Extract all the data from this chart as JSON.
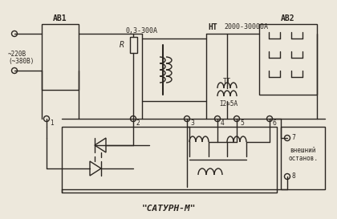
{
  "bg_color": "#ede8dc",
  "line_color": "#2a2520",
  "title": "\"САТУРН-М\"",
  "label_AB1": "АВ1",
  "label_AB2": "АВ2",
  "label_voltage1": "~220В",
  "label_voltage2": "(~380В)",
  "label_R": "R",
  "label_range1": "0,3-300А",
  "label_HT": "НТ",
  "label_range2": "2000-30000А",
  "label_TT": "ТТ",
  "label_I2": "I2=5А",
  "label_ext1": "внешний",
  "label_ext2": "останов.",
  "term_labels": [
    "1",
    "2",
    "3",
    "4",
    "5",
    "6",
    "7",
    "8"
  ]
}
